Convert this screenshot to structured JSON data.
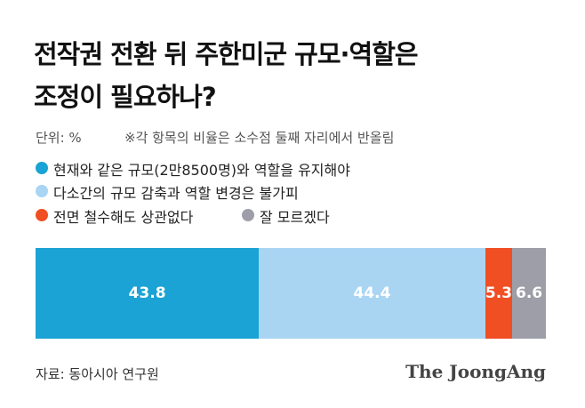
{
  "chart_data": {
    "type": "stacked-bar",
    "title": [
      "전작권 전환 뒤 주한미군 규모·역할은",
      "조정이 필요하나?"
    ],
    "unit": "단위: %",
    "note": "※각 항목의 비율은 소수점 둘째 자리에서 반올림",
    "series": [
      {
        "name": "현재와 같은 규모(2만8500명)와 역할을 유지해야",
        "color": "#1aa3d4",
        "values": [
          43.8
        ]
      },
      {
        "name": "다소간의 규모 감축과 역할 변경은 불가피",
        "color": "#a9d5f3",
        "values": [
          44.4
        ]
      },
      {
        "name": "전면 철수해도 상관없다",
        "color": "#f04e23",
        "values": [
          5.3
        ]
      },
      {
        "name": "잘 모르겠다",
        "color": "#9e9ea8",
        "values": [
          6.6
        ]
      }
    ],
    "source": "자료: 동아시아 연구원",
    "logo": "The JoongAng"
  }
}
